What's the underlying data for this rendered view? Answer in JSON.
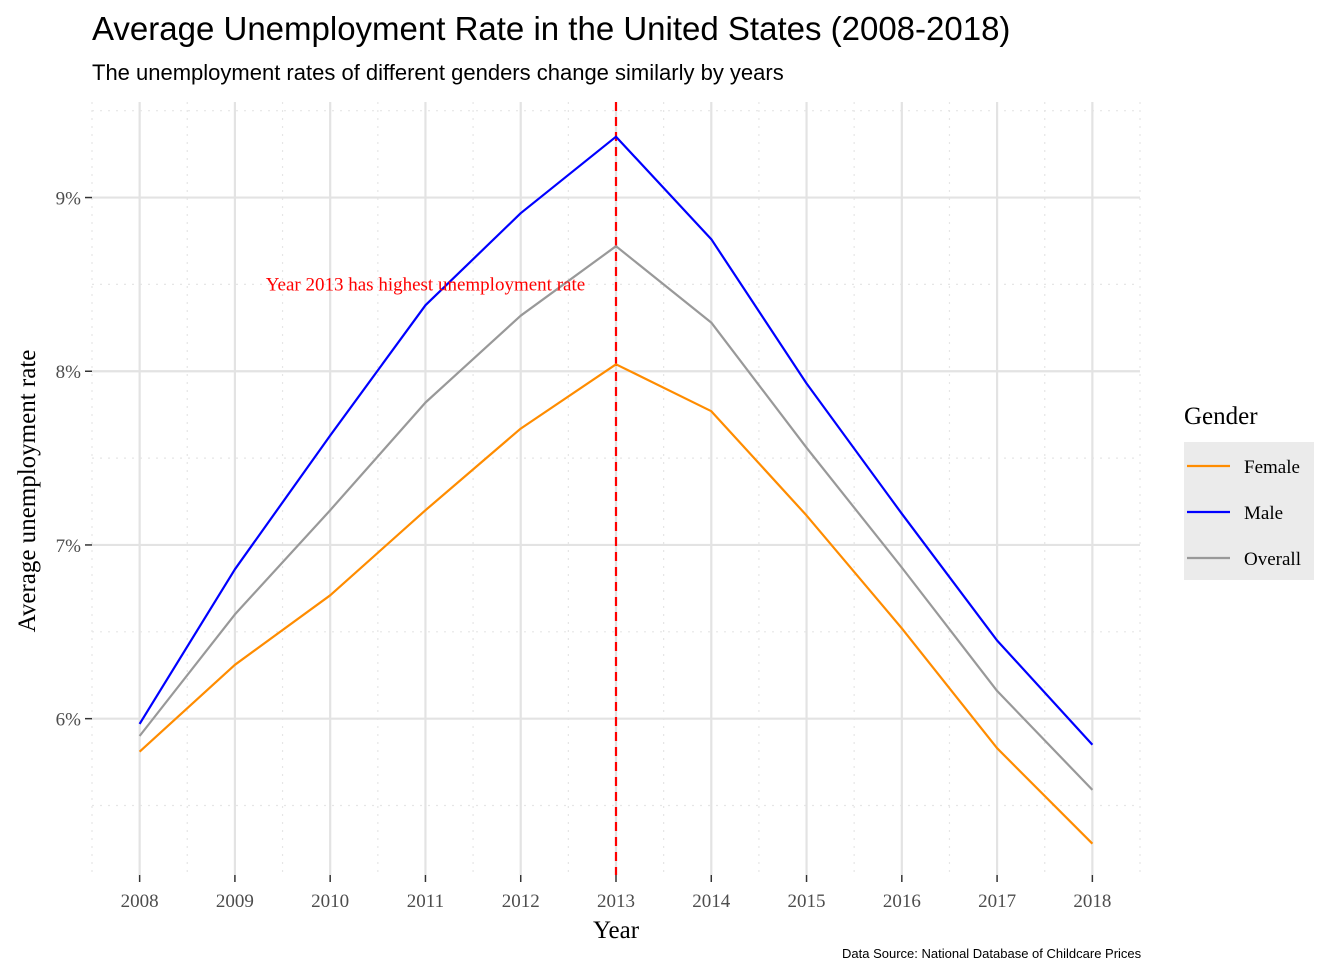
{
  "title": "Average Unemployment Rate in the United States  (2008-2018)",
  "subtitle": "The unemployment rates of different genders change similarly by years",
  "caption": "Data Source: National Database of Childcare Prices",
  "chart_data": {
    "type": "line",
    "title": "Average Unemployment Rate in the United States  (2008-2018)",
    "subtitle": "The unemployment rates of different genders change similarly by years",
    "xlabel": "Year",
    "ylabel": "Average unemployment rate",
    "x": [
      2008,
      2009,
      2010,
      2011,
      2012,
      2013,
      2014,
      2015,
      2016,
      2017,
      2018
    ],
    "xlim": [
      2007.5,
      2018.5
    ],
    "ylim": [
      5.1,
      9.55
    ],
    "y_ticks": [
      6,
      7,
      8,
      9
    ],
    "y_tick_labels": [
      "6%",
      "7%",
      "8%",
      "9%"
    ],
    "x_tick_labels": [
      "2008",
      "2009",
      "2010",
      "2011",
      "2012",
      "2013",
      "2014",
      "2015",
      "2016",
      "2017",
      "2018"
    ],
    "grid": true,
    "legend": {
      "title": "Gender",
      "position": "right"
    },
    "series": [
      {
        "name": "Female",
        "color": "#FF8C00",
        "values": [
          5.81,
          6.31,
          6.71,
          7.2,
          7.67,
          8.04,
          7.77,
          7.17,
          6.52,
          5.83,
          5.28
        ]
      },
      {
        "name": "Male",
        "color": "#0000FF",
        "values": [
          5.97,
          6.86,
          7.63,
          8.38,
          8.91,
          9.35,
          8.76,
          7.93,
          7.18,
          6.45,
          5.85
        ]
      },
      {
        "name": "Overall",
        "color": "#999999",
        "values": [
          5.9,
          6.6,
          7.2,
          7.82,
          8.32,
          8.72,
          8.28,
          7.56,
          6.87,
          6.16,
          5.59
        ]
      }
    ],
    "vline": {
      "x": 2013,
      "color": "#FF0000",
      "style": "dashed"
    },
    "annotation": {
      "text": "Year 2013 has highest unemployment rate",
      "x": 2011,
      "y": 8.5,
      "color": "#FF0000"
    }
  }
}
